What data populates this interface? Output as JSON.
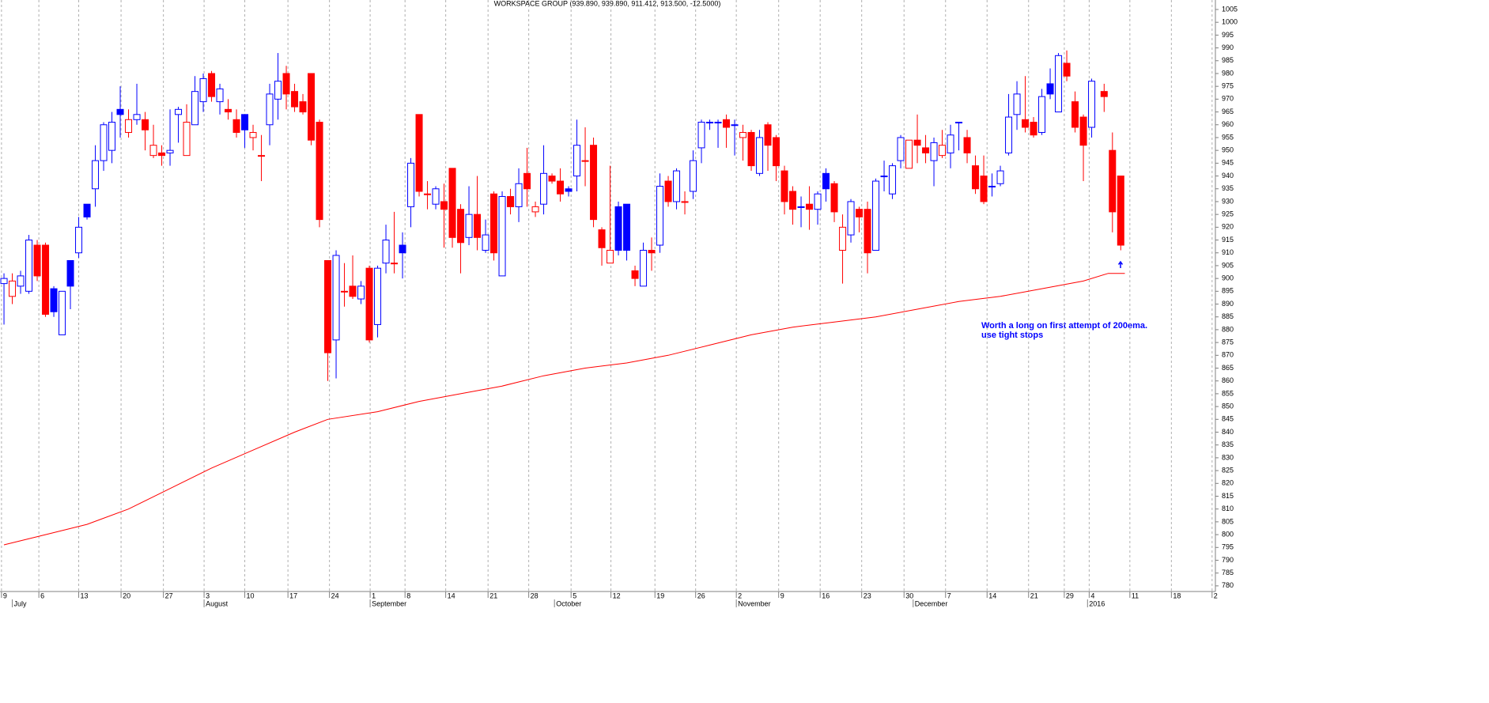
{
  "chart_data": {
    "type": "candlestick",
    "title": "WORKSPACE GROUP (939.890, 939.890, 911.412, 913.500, -12.5000)",
    "annotation": [
      "Worth a long on first attempt of 200ema.",
      "use tight stops"
    ],
    "up_color": "#0000ff",
    "down_color": "#ff0000",
    "x": [
      0,
      1,
      2,
      3,
      4,
      5,
      6,
      7,
      8,
      9,
      10,
      11,
      12,
      13,
      14,
      15,
      16,
      17,
      18,
      19,
      20,
      21,
      22,
      23,
      24,
      25,
      26,
      27,
      28,
      29,
      30,
      31,
      32,
      33,
      34,
      35,
      36,
      37,
      38,
      39,
      40,
      41,
      42,
      43,
      44,
      45,
      46,
      47,
      48,
      49,
      50,
      51,
      52,
      53,
      54,
      55,
      56,
      57,
      58,
      59,
      60,
      61,
      62,
      63,
      64,
      65,
      66,
      67,
      68,
      69,
      70,
      71,
      72,
      73,
      74,
      75,
      76,
      77,
      78,
      79,
      80,
      81,
      82,
      83,
      84,
      85,
      86,
      87,
      88,
      89,
      90,
      91,
      92,
      93,
      94,
      95,
      96,
      97,
      98,
      99,
      100,
      101,
      102,
      103,
      104,
      105,
      106,
      107,
      108,
      109,
      110,
      111,
      112,
      113,
      114,
      115,
      116,
      117,
      118,
      119,
      120,
      121,
      122,
      123,
      124,
      125,
      126,
      127,
      128,
      129,
      130,
      131,
      132.5,
      133.5,
      134.5
    ],
    "open": [
      898,
      893,
      897,
      895,
      913,
      913,
      896,
      878,
      907,
      910,
      929,
      935,
      946,
      950,
      966,
      957,
      962,
      962,
      948,
      949,
      949,
      964,
      948,
      960,
      969,
      980,
      969,
      966,
      962,
      964,
      955,
      948,
      960,
      970,
      980,
      973,
      969,
      980,
      961,
      907,
      876,
      895,
      897,
      892,
      904,
      882,
      906,
      906,
      913,
      928,
      964,
      933,
      929,
      930,
      943,
      927,
      916,
      925,
      911,
      933,
      901,
      932,
      928,
      941,
      926,
      929,
      940,
      938,
      935,
      940,
      946,
      952,
      919,
      906,
      928,
      929,
      903,
      897,
      911,
      913,
      938,
      930,
      930,
      934,
      951,
      961,
      961,
      962,
      960,
      955,
      957,
      941,
      960,
      955,
      942,
      934,
      928,
      929,
      927,
      941,
      937,
      911,
      917,
      927,
      927,
      911,
      940,
      933,
      946,
      943,
      954,
      951,
      946,
      948,
      949,
      961,
      955,
      944,
      940,
      936,
      937,
      949,
      964,
      962,
      961,
      957,
      976,
      965,
      984,
      969,
      963,
      959,
      973,
      950,
      940
    ],
    "high": [
      902,
      902,
      903,
      917,
      915,
      914,
      897,
      895,
      907,
      924,
      929,
      952,
      961,
      965,
      975,
      966,
      976,
      965,
      960,
      952,
      966,
      967,
      968,
      979,
      980,
      981,
      976,
      970,
      966,
      964,
      960,
      956,
      976,
      988,
      983,
      976,
      972,
      980,
      962,
      907,
      911,
      906,
      909,
      899,
      905,
      905,
      921,
      926,
      918,
      947,
      964,
      938,
      936,
      937,
      943,
      929,
      936,
      940,
      923,
      934,
      934,
      935,
      943,
      951,
      930,
      952,
      941,
      943,
      936,
      962,
      959,
      955,
      920,
      944,
      930,
      929,
      905,
      914,
      916,
      941,
      940,
      943,
      934,
      950,
      962,
      962,
      962,
      964,
      962,
      960,
      958,
      958,
      961,
      956,
      944,
      936,
      932,
      936,
      934,
      943,
      938,
      925,
      931,
      928,
      930,
      939,
      946,
      945,
      956,
      954,
      964,
      956,
      955,
      958,
      960,
      961,
      958,
      948,
      948,
      941,
      944,
      972,
      977,
      979,
      963,
      974,
      982,
      988,
      989,
      973,
      964,
      978,
      976,
      957,
      940
    ],
    "low": [
      882,
      890,
      894,
      894,
      899,
      885,
      885,
      878,
      888,
      908,
      923,
      928,
      942,
      945,
      955,
      955,
      960,
      950,
      947,
      944,
      944,
      953,
      948,
      960,
      965,
      969,
      964,
      962,
      955,
      951,
      950,
      938,
      952,
      962,
      966,
      965,
      964,
      952,
      920,
      860,
      861,
      889,
      892,
      890,
      875,
      877,
      902,
      902,
      900,
      920,
      932,
      927,
      927,
      912,
      912,
      902,
      913,
      911,
      910,
      907,
      901,
      925,
      922,
      928,
      924,
      925,
      937,
      930,
      932,
      934,
      936,
      920,
      905,
      906,
      909,
      907,
      897,
      897,
      903,
      910,
      928,
      927,
      925,
      931,
      945,
      958,
      951,
      951,
      948,
      946,
      942,
      940,
      942,
      938,
      925,
      921,
      920,
      919,
      921,
      930,
      922,
      898,
      914,
      918,
      902,
      911,
      934,
      931,
      943,
      943,
      945,
      945,
      936,
      947,
      943,
      950,
      945,
      933,
      929,
      932,
      936,
      948,
      958,
      957,
      955,
      956,
      970,
      965,
      977,
      957,
      938,
      955,
      965,
      918,
      911
    ],
    "close": [
      900,
      899,
      901,
      915,
      901,
      886,
      887,
      895,
      897,
      920,
      924,
      946,
      960,
      961,
      964,
      962,
      964,
      958,
      952,
      948,
      950,
      966,
      961,
      973,
      978,
      971,
      974,
      965,
      957,
      958,
      957,
      948,
      972,
      977,
      972,
      967,
      965,
      954,
      923,
      871,
      909,
      895,
      893,
      897,
      876,
      904,
      915,
      906,
      910,
      945,
      934,
      933,
      935,
      927,
      916,
      914,
      925,
      916,
      917,
      910,
      932,
      928,
      937,
      935,
      928,
      941,
      938,
      933,
      934,
      952,
      946,
      923,
      912,
      911,
      911,
      911,
      900,
      911,
      910,
      936,
      930,
      942,
      930,
      946,
      961,
      961,
      961,
      959,
      960,
      957,
      944,
      955,
      952,
      944,
      930,
      927,
      928,
      927,
      933,
      935,
      926,
      920,
      930,
      924,
      910,
      938,
      940,
      944,
      955,
      954,
      952,
      949,
      953,
      952,
      956,
      961,
      949,
      935,
      930,
      936,
      942,
      963,
      972,
      959,
      956,
      971,
      972,
      987,
      979,
      959,
      952,
      977,
      971,
      926,
      913
    ],
    "ema": {
      "color": "#ff0000",
      "x": [
        0,
        5,
        10,
        15,
        20,
        25,
        30,
        35,
        39,
        45,
        50,
        55,
        60,
        65,
        70,
        75,
        80,
        85,
        90,
        95,
        100,
        105,
        110,
        115,
        120,
        125,
        130,
        133,
        135
      ],
      "values": [
        796,
        800,
        804,
        810,
        818,
        826,
        833,
        840,
        845,
        848,
        852,
        855,
        858,
        862,
        865,
        867,
        870,
        874,
        878,
        881,
        883,
        885,
        888,
        891,
        893,
        896,
        899,
        902,
        902
      ]
    },
    "xlim": [
      -0.48,
      145.9
    ],
    "ylim": [
      777.8,
      1008.7
    ],
    "yticks": [
      780,
      785,
      790,
      795,
      800,
      805,
      810,
      815,
      820,
      825,
      830,
      835,
      840,
      845,
      850,
      855,
      860,
      865,
      870,
      875,
      880,
      885,
      890,
      895,
      900,
      905,
      910,
      915,
      920,
      925,
      930,
      935,
      940,
      945,
      950,
      955,
      960,
      965,
      970,
      975,
      980,
      985,
      990,
      995,
      1000,
      1005
    ],
    "xticks": [
      {
        "value": -0.3,
        "label": "9"
      },
      {
        "value": 4.2,
        "label": "6"
      },
      {
        "value": 9.0,
        "label": "13"
      },
      {
        "value": 14.1,
        "label": "20"
      },
      {
        "value": 19.2,
        "label": "27"
      },
      {
        "value": 24.1,
        "label": "3"
      },
      {
        "value": 29.0,
        "label": "10"
      },
      {
        "value": 34.2,
        "label": "17"
      },
      {
        "value": 39.2,
        "label": "24"
      },
      {
        "value": 44.1,
        "label": "1"
      },
      {
        "value": 48.3,
        "label": "8"
      },
      {
        "value": 53.2,
        "label": "14"
      },
      {
        "value": 58.3,
        "label": "21"
      },
      {
        "value": 63.2,
        "label": "28"
      },
      {
        "value": 68.3,
        "label": "5"
      },
      {
        "value": 73.1,
        "label": "12"
      },
      {
        "value": 78.4,
        "label": "19"
      },
      {
        "value": 83.3,
        "label": "26"
      },
      {
        "value": 88.2,
        "label": "2"
      },
      {
        "value": 93.3,
        "label": "9"
      },
      {
        "value": 98.3,
        "label": "16"
      },
      {
        "value": 103.3,
        "label": "23"
      },
      {
        "value": 108.4,
        "label": "30"
      },
      {
        "value": 113.4,
        "label": "7"
      },
      {
        "value": 118.4,
        "label": "14"
      },
      {
        "value": 123.4,
        "label": "21"
      },
      {
        "value": 127.7,
        "label": "29"
      },
      {
        "value": 130.7,
        "label": "4"
      },
      {
        "value": 135.6,
        "label": "11"
      },
      {
        "value": 140.6,
        "label": "18"
      },
      {
        "value": 145.5,
        "label": "2"
      }
    ],
    "month_ticks": [
      {
        "value": 1.0,
        "label": "July"
      },
      {
        "value": 24.1,
        "label": "August"
      },
      {
        "value": 44.1,
        "label": "September"
      },
      {
        "value": 66.3,
        "label": "October"
      },
      {
        "value": 88.2,
        "label": "November"
      },
      {
        "value": 109.5,
        "label": "December"
      },
      {
        "value": 130.5,
        "label": "2016"
      }
    ],
    "grid": true
  }
}
